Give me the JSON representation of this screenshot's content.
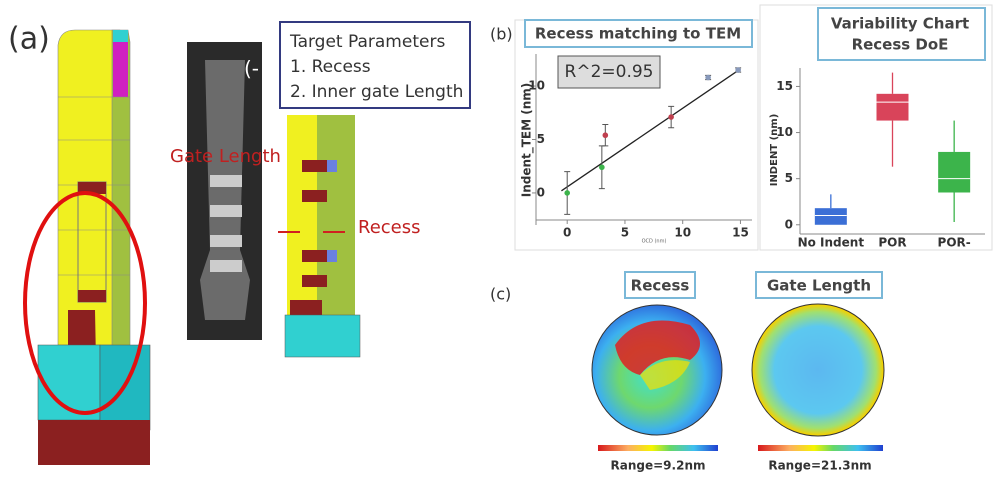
{
  "figure": {
    "panel_a": "(a)",
    "panel_b": "(b)",
    "panel_c": "(c)",
    "target_title": "Target Parameters",
    "target_items": [
      "1. Recess",
      "2. Inner gate Length"
    ],
    "gate_length_label": "Gate Length",
    "recess_label": "Recess",
    "sem_mark": "(-",
    "wafer_maps": [
      {
        "title": "Recess",
        "range": "Range=9.2nm"
      },
      {
        "title": "Gate Length",
        "range": "Range=21.3nm"
      }
    ]
  },
  "chart_data": [
    {
      "type": "scatter",
      "title": "Recess matching to TEM",
      "xlabel": "OCD (nm)",
      "ylabel": "Indent_TEM (nm)",
      "annotation": "R^2=0.95",
      "x": [
        0,
        3,
        3.3,
        9,
        12.2,
        14.8
      ],
      "values": [
        0,
        2.4,
        5.4,
        7.1,
        10.8,
        11.5
      ],
      "errors": [
        2,
        2,
        1,
        1,
        0.2,
        0.2
      ],
      "colors": [
        "#3cb44b",
        "#3cb44b",
        "#c0404f",
        "#c0404f",
        "#8899bb",
        "#8899bb"
      ],
      "fit": {
        "x": [
          -0.5,
          15
        ],
        "y": [
          0.2,
          11.6
        ]
      },
      "xlim": [
        -4,
        16
      ],
      "ylim": [
        -3,
        13
      ],
      "xticks": [
        0,
        5,
        10,
        15
      ],
      "yticks": [
        0,
        5,
        10
      ]
    },
    {
      "type": "box",
      "title": "Variability Chart",
      "subtitle": "Recess DoE",
      "ylabel": "INDENT (nm)",
      "categories": [
        "No Indent",
        "POR",
        "POR-"
      ],
      "boxes": [
        {
          "min": 0,
          "q1": 0,
          "median": 1,
          "q3": 1.8,
          "max": 3.3,
          "color": "#3b6fd6"
        },
        {
          "min": 6.3,
          "q1": 11.3,
          "median": 13.3,
          "q3": 14.2,
          "max": 16.5,
          "color": "#d9445a"
        },
        {
          "min": 0.3,
          "q1": 3.5,
          "median": 5,
          "q3": 7.9,
          "max": 11.3,
          "color": "#3cb44b"
        }
      ],
      "ylim": [
        -1,
        17
      ],
      "yticks": [
        0,
        5,
        10,
        15
      ]
    }
  ]
}
